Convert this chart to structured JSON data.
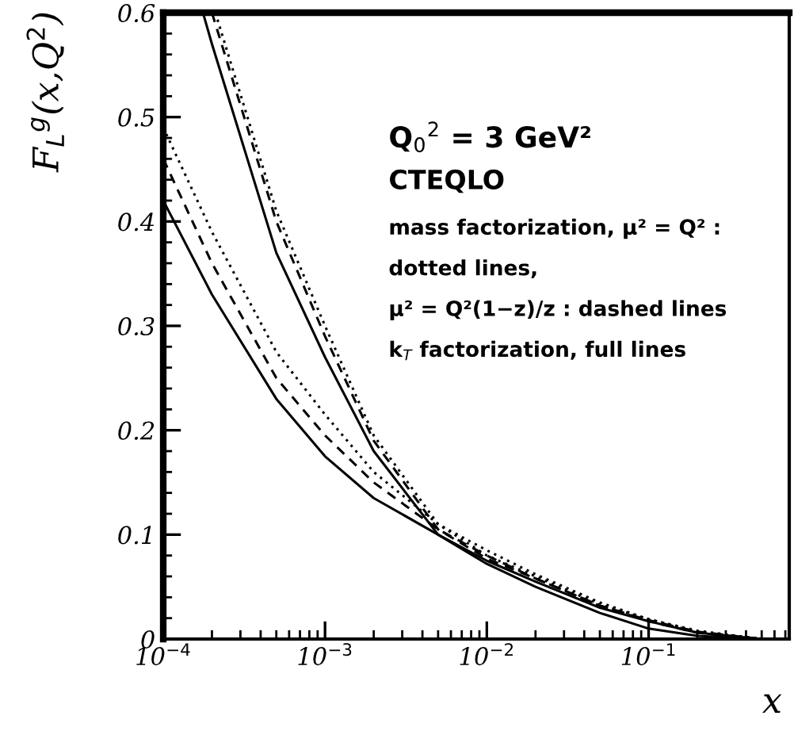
{
  "chart_data": {
    "type": "line",
    "xlabel": "x",
    "ylabel": "F$_{L}$$^{g}$(x,Q$^{2}$)",
    "log": "x",
    "xlim": [
      0.0001,
      0.74
    ],
    "ylim": [
      0,
      0.6
    ],
    "xticks": [
      {
        "value": 0.0001,
        "label": "10$^{−4}$"
      },
      {
        "value": 0.001,
        "label": "10$^{−3}$"
      },
      {
        "value": 0.01,
        "label": "10$^{−2}$"
      },
      {
        "value": 0.1,
        "label": "10$^{−1}$"
      }
    ],
    "yticks": [
      0,
      0.1,
      0.2,
      0.3,
      0.4,
      0.5,
      0.6
    ],
    "grid": false,
    "legend": false,
    "marker": "none",
    "annotations": [
      "Q$_{0}$$^{2}$ = 3 GeV²",
      "CTEQLO",
      "mass factorization, μ² = Q² :",
      "dotted lines,",
      "μ² = Q²(1−z)/z : dashed lines",
      "k$_{T}$ factorization, full lines"
    ],
    "series": [
      {
        "color": "#000000",
        "line_style": "solid",
        "x": [
          0.0001,
          0.0002,
          0.0005,
          0.001,
          0.002,
          0.005,
          0.01,
          0.02,
          0.05,
          0.1,
          0.2,
          0.5
        ],
        "values": [
          0.42,
          0.33,
          0.23,
          0.175,
          0.135,
          0.1,
          0.072,
          0.05,
          0.025,
          0.01,
          0.003,
          0.0
        ]
      },
      {
        "color": "#000000",
        "line_style": "dashed",
        "x": [
          0.0001,
          0.0002,
          0.0005,
          0.001,
          0.002,
          0.005,
          0.01,
          0.02,
          0.05,
          0.1,
          0.2,
          0.5
        ],
        "values": [
          0.46,
          0.36,
          0.25,
          0.195,
          0.15,
          0.105,
          0.08,
          0.058,
          0.032,
          0.017,
          0.006,
          0.0
        ]
      },
      {
        "color": "#000000",
        "line_style": "dotted",
        "x": [
          0.0001,
          0.0002,
          0.0005,
          0.001,
          0.002,
          0.005,
          0.01,
          0.02,
          0.05,
          0.1,
          0.2,
          0.5
        ],
        "values": [
          0.49,
          0.39,
          0.275,
          0.215,
          0.16,
          0.11,
          0.085,
          0.062,
          0.035,
          0.019,
          0.007,
          0.0
        ]
      },
      {
        "color": "#000000",
        "line_style": "solid",
        "x": [
          0.000176,
          0.0002,
          0.0005,
          0.001,
          0.002,
          0.005,
          0.01,
          0.02,
          0.05,
          0.1,
          0.2,
          0.5
        ],
        "values": [
          0.6,
          0.57,
          0.37,
          0.27,
          0.18,
          0.1,
          0.075,
          0.055,
          0.03,
          0.017,
          0.006,
          0.0
        ]
      },
      {
        "color": "#000000",
        "line_style": "dashed",
        "x": [
          0.0002,
          0.0005,
          0.001,
          0.002,
          0.005,
          0.01,
          0.02,
          0.05,
          0.1,
          0.2,
          0.5
        ],
        "values": [
          0.6,
          0.4,
          0.29,
          0.19,
          0.105,
          0.077,
          0.058,
          0.032,
          0.018,
          0.007,
          0.0
        ]
      },
      {
        "color": "#000000",
        "line_style": "dotted",
        "x": [
          0.00021,
          0.0005,
          0.001,
          0.002,
          0.005,
          0.01,
          0.02,
          0.05,
          0.1,
          0.2,
          0.5
        ],
        "values": [
          0.6,
          0.41,
          0.3,
          0.195,
          0.11,
          0.08,
          0.06,
          0.033,
          0.019,
          0.008,
          0.0
        ]
      }
    ]
  }
}
